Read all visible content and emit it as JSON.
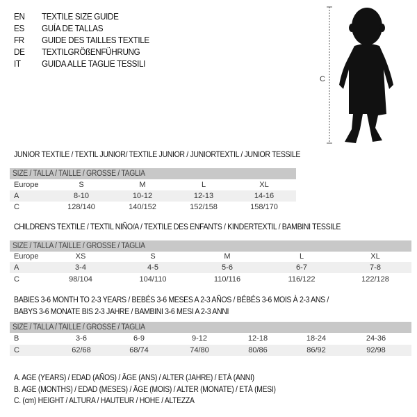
{
  "header": [
    {
      "code": "EN",
      "text": "TEXTILE SIZE GUIDE"
    },
    {
      "code": "ES",
      "text": "GUÍA DE TALLAS"
    },
    {
      "code": "FR",
      "text": "GUIDE DES TAILLES TEXTILE"
    },
    {
      "code": "DE",
      "text": "TEXTILGRÖßENFÜHRUNG"
    },
    {
      "code": "IT",
      "text": "GUIDA ALLE TAGLIE TESSILI"
    }
  ],
  "figure": {
    "measure_label": "C"
  },
  "size_header": "SIZE / TALLA / TAILLE / GRÖSSE / TAGLIA",
  "junior": {
    "title": "JUNIOR TEXTILE / TEXTIL JUNIOR/ TEXTILE JUNIOR / JUNIORTEXTIL / JUNIOR TESSILE",
    "rows": [
      {
        "label": "Europe",
        "values": [
          "S",
          "M",
          "L",
          "XL"
        ]
      },
      {
        "label": "A",
        "values": [
          "8-10",
          "10-12",
          "12-13",
          "14-16"
        ]
      },
      {
        "label": "C",
        "values": [
          "128/140",
          "140/152",
          "152/158",
          "158/170"
        ]
      }
    ]
  },
  "children": {
    "title": "CHILDREN'S TEXTILE / TEXTIL NIÑO/A / TEXTILE DES ENFANTS / KINDERTEXTIL / BAMBINI TESSILE",
    "rows": [
      {
        "label": "Europe",
        "values": [
          "XS",
          "S",
          "M",
          "L",
          "XL"
        ]
      },
      {
        "label": "A",
        "values": [
          "3-4",
          "4-5",
          "5-6",
          "6-7",
          "7-8"
        ]
      },
      {
        "label": "C",
        "values": [
          "98/104",
          "104/110",
          "110/116",
          "116/122",
          "122/128"
        ]
      }
    ]
  },
  "babies": {
    "title_line1": "BABIES 3-6 MONTH TO 2-3 YEARS / BEBÉS 3-6 MESES A 2-3 AÑOS / BÉBÉS 3-6 MOIS À 2-3 ANS /",
    "title_line2": "BABYS 3-6 MONATE BIS 2-3 JAHRE / BAMBINI 3-6 MESI A 2-3 ANNI",
    "rows": [
      {
        "label": "B",
        "values": [
          "3-6",
          "6-9",
          "9-12",
          "12-18",
          "18-24",
          "24-36"
        ]
      },
      {
        "label": "C",
        "values": [
          "62/68",
          "68/74",
          "74/80",
          "80/86",
          "86/92",
          "92/98"
        ]
      }
    ]
  },
  "legend": [
    "A. AGE (YEARS) / EDAD (AÑOS) / ÂGE (ANS) / ALTER (JAHRE) / ETÀ (ANNI)",
    "B. AGE (MONTHS) / EDAD (MESES) / ÂGE (MOIS) / ALTER (MONATE) / ETÀ (MESI)",
    "C. (cm) HEIGHT / ALTURA / HAUTEUR / HÖHE / ALTEZZA"
  ]
}
